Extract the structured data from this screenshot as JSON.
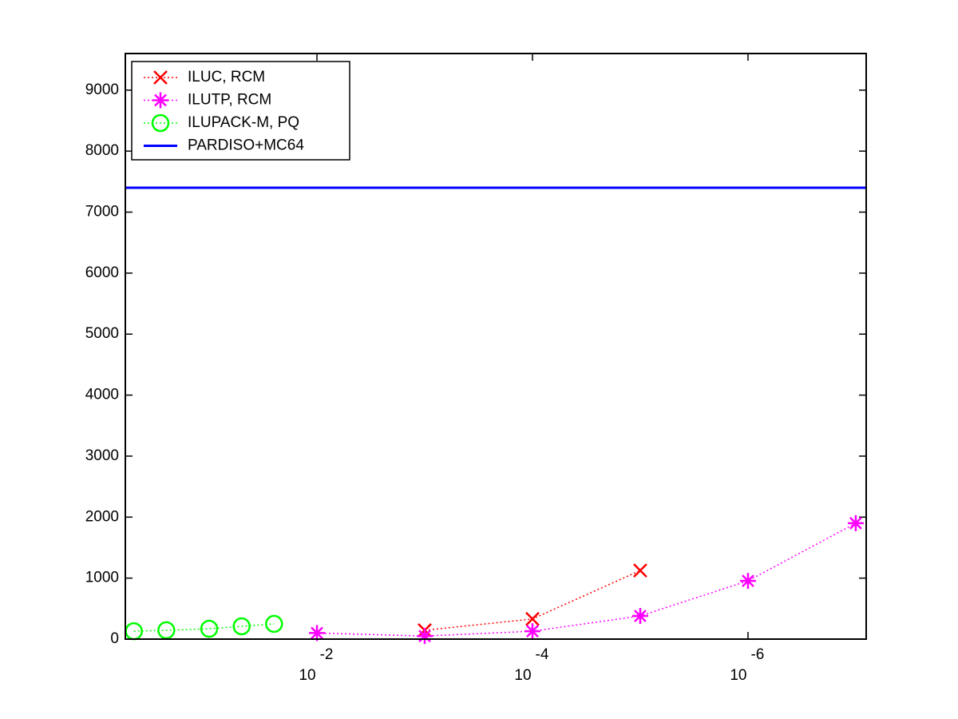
{
  "chart_data": {
    "type": "line",
    "xscale": "log",
    "xlim": [
      0.6,
      8e-08
    ],
    "ylim": [
      0,
      9600
    ],
    "xticks": [
      {
        "value": 0.01,
        "label": "10",
        "exponent": "-2"
      },
      {
        "value": 0.0001,
        "label": "10",
        "exponent": "-4"
      },
      {
        "value": 1e-06,
        "label": "10",
        "exponent": "-6"
      }
    ],
    "yticks": [
      0,
      1000,
      2000,
      3000,
      4000,
      5000,
      6000,
      7000,
      8000,
      9000
    ],
    "legend": "upper left",
    "series": [
      {
        "name": "ILUC, RCM",
        "color": "#ff0000",
        "marker": "x",
        "linestyle": "dotted",
        "x": [
          0.001,
          0.0001,
          1e-05
        ],
        "values": [
          145,
          330,
          1125
        ]
      },
      {
        "name": "ILUTP, RCM",
        "color": "#ff00ff",
        "marker": "star",
        "linestyle": "dotted",
        "x": [
          0.01,
          0.001,
          0.0001,
          1e-05,
          1e-06,
          1e-07
        ],
        "values": [
          100,
          50,
          130,
          380,
          955,
          1900
        ]
      },
      {
        "name": "ILUPACK-M, PQ",
        "color": "#00ff00",
        "marker": "circle",
        "linestyle": "dotted",
        "x": [
          0.5,
          0.25,
          0.1,
          0.05,
          0.025
        ],
        "values": [
          130,
          145,
          170,
          210,
          250
        ]
      },
      {
        "name": "PARDISO+MC64",
        "color": "#0000ff",
        "marker": "none",
        "linestyle": "solid",
        "x": [
          0.6,
          8e-08
        ],
        "values": [
          7400,
          7400
        ]
      }
    ]
  }
}
